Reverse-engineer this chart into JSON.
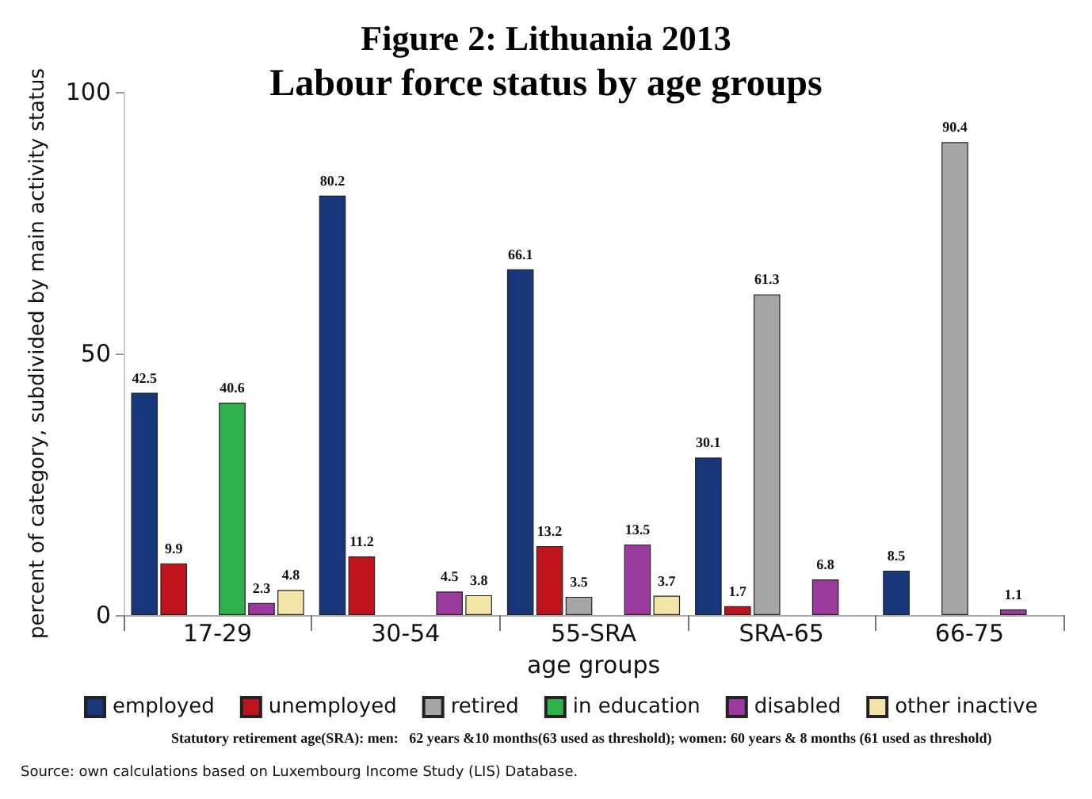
{
  "chart_data": {
    "type": "bar",
    "title": "Figure 2: Lithuania 2013",
    "subtitle": "Labour force status by age groups",
    "xlabel": "age groups",
    "ylabel": "percent of category, subdivided by main activity status",
    "categories": [
      "17-29",
      "30-54",
      "55-SRA",
      "SRA-65",
      "66-75"
    ],
    "series": [
      {
        "name": "employed",
        "color": "#17377a",
        "values": [
          42.5,
          80.2,
          66.1,
          30.1,
          8.5
        ],
        "value_labels": [
          "42.5",
          "80.2",
          "66.1",
          "30.1",
          "8.5"
        ]
      },
      {
        "name": "unemployed",
        "color": "#c0141c",
        "values": [
          9.9,
          11.2,
          13.2,
          1.7,
          null
        ],
        "value_labels": [
          "9.9",
          "11.2",
          "13.2",
          "1.7",
          null
        ]
      },
      {
        "name": "retired",
        "color": "#a6a6a6",
        "values": [
          null,
          null,
          3.5,
          61.3,
          90.4
        ],
        "value_labels": [
          null,
          null,
          "3.5",
          "61.3",
          "90.4"
        ]
      },
      {
        "name": "in education",
        "color": "#2fb14c",
        "values": [
          40.6,
          null,
          null,
          null,
          null
        ],
        "value_labels": [
          "40.6",
          null,
          null,
          null,
          null
        ]
      },
      {
        "name": "disabled",
        "color": "#9b3a9e",
        "values": [
          2.3,
          4.5,
          13.5,
          6.8,
          1.1
        ],
        "value_labels": [
          "2.3",
          "4.5",
          "13.5",
          "6.8",
          "1.1"
        ]
      },
      {
        "name": "other inactive",
        "color": "#f1e6a8",
        "values": [
          4.8,
          3.8,
          3.7,
          null,
          null
        ],
        "value_labels": [
          "4.8",
          "3.8",
          "3.7",
          null,
          null
        ]
      }
    ],
    "ylim": [
      0,
      100
    ],
    "yticks": [
      0,
      50,
      100
    ],
    "grid": false,
    "legend": "bottom",
    "annotations": [
      "Statutory retirement age(SRA): men:   62 years &10 months(63 used as threshold); women: 60 years & 8 months (61 used as threshold)",
      "Source: own calculations based on Luxembourg Income Study (LIS) Database."
    ]
  }
}
